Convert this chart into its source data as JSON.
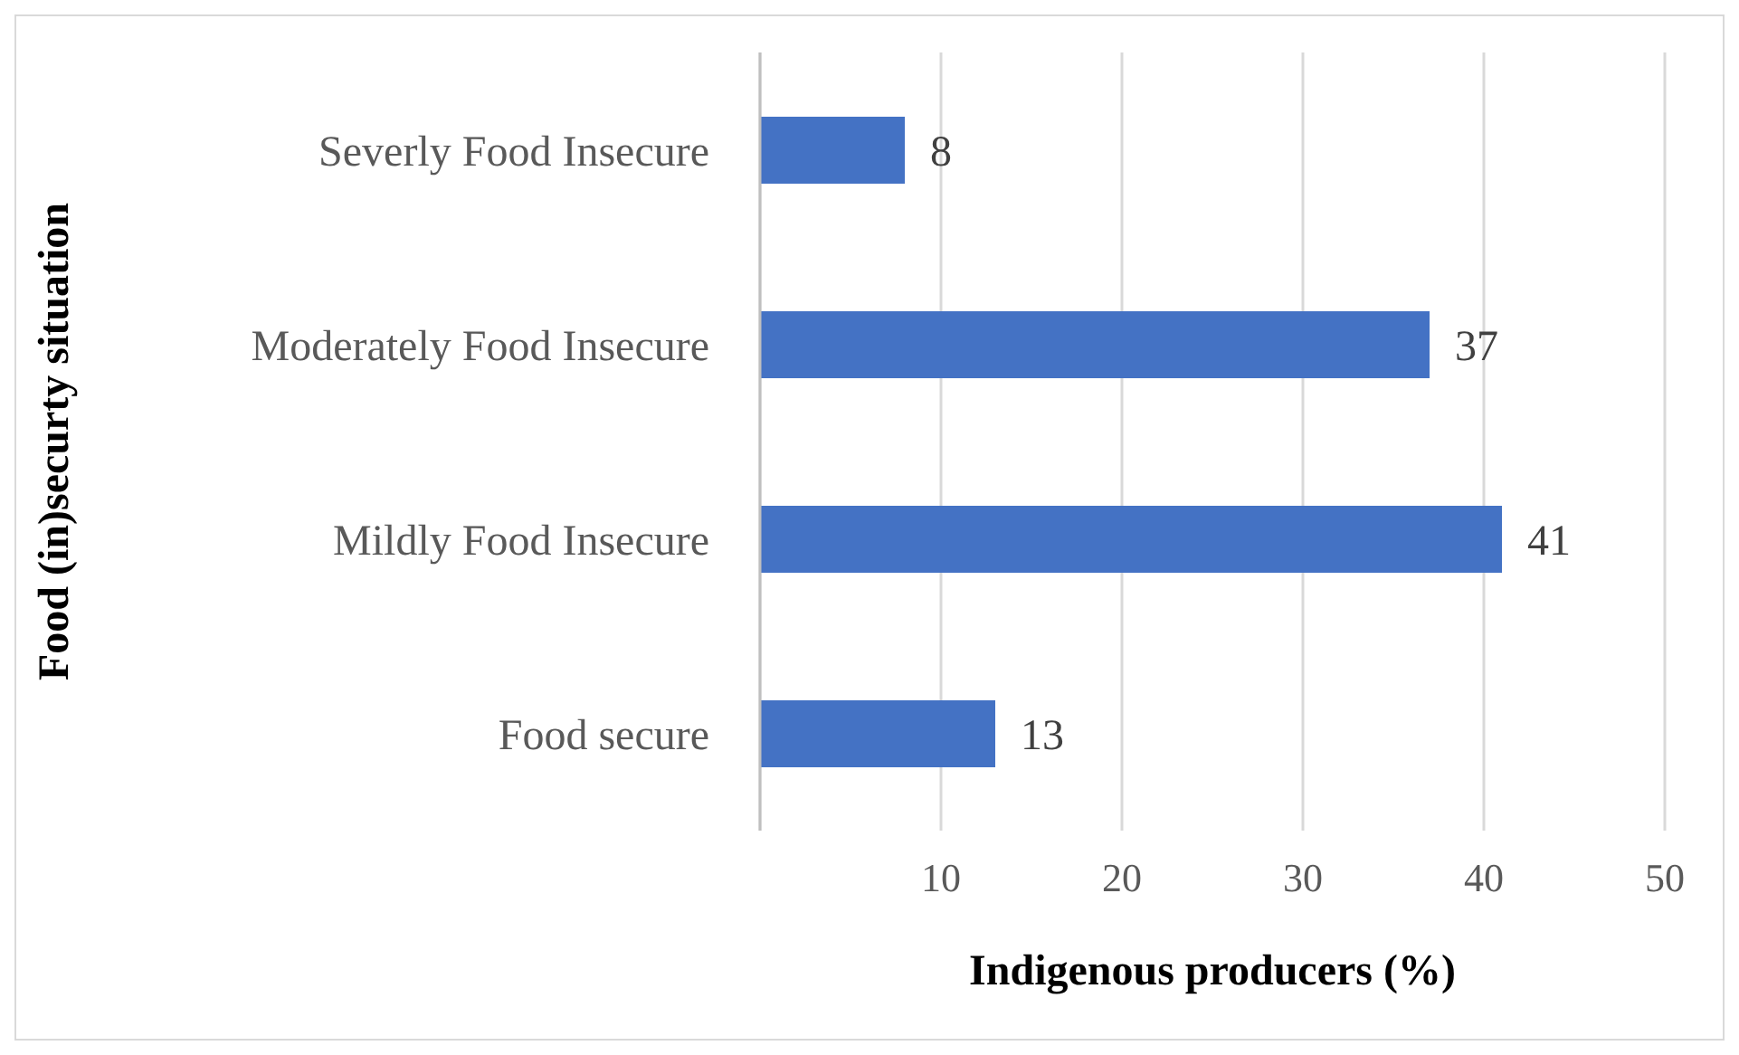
{
  "chart_data": {
    "type": "bar",
    "orientation": "horizontal",
    "xlabel": "Indigenous producers (%)",
    "ylabel": "Food (in)securty situation",
    "categories": [
      "Severly Food Insecure",
      "Moderately Food Insecure",
      "Mildly Food Insecure",
      "Food secure"
    ],
    "values": [
      8,
      37,
      41,
      13
    ],
    "color": "#4472c4",
    "data_labels": true,
    "xlim": [
      0,
      50
    ],
    "xticks": [
      {
        "value": 0,
        "label": null
      },
      10,
      20,
      30,
      40,
      50
    ],
    "grid": "x"
  }
}
